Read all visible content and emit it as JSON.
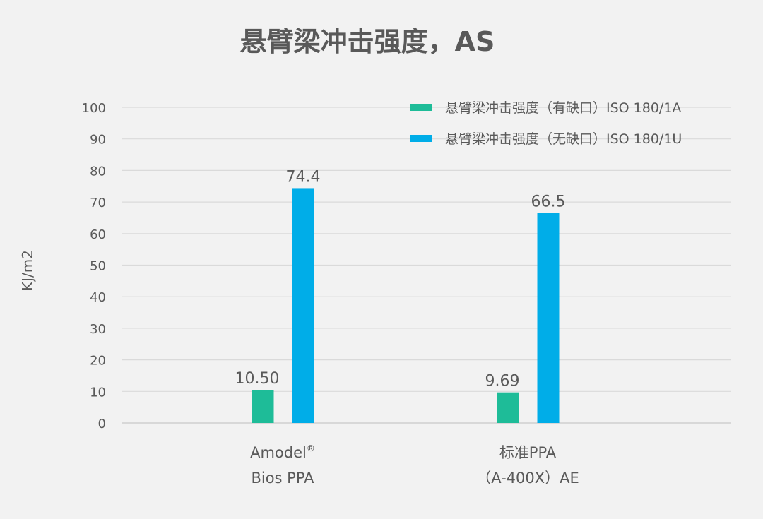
{
  "chart_data": {
    "type": "bar",
    "title": "悬臂梁冲击强度，AS",
    "ylabel": "KJ/m2",
    "xlabel": "",
    "ylim": [
      0,
      100
    ],
    "yticks": [
      0,
      10,
      20,
      30,
      40,
      50,
      60,
      70,
      80,
      90,
      100
    ],
    "grid": true,
    "legend_position": "top-right",
    "categories": [
      {
        "lines": [
          "Amodel",
          "Bios PPA"
        ],
        "superscript": "®"
      },
      {
        "lines": [
          "标准PPA",
          "（A-400X）AE"
        ],
        "superscript": ""
      }
    ],
    "series": [
      {
        "name": "悬臂梁冲击强度（有缺口）ISO 180/1A",
        "color": "#1ebc98",
        "values": [
          10.5,
          9.69
        ],
        "labels": [
          "10.50",
          "9.69"
        ]
      },
      {
        "name": "悬臂梁冲击强度（无缺口）ISO 180/1U",
        "color": "#00ade8",
        "values": [
          74.4,
          66.5
        ],
        "labels": [
          "74.4",
          "66.5"
        ]
      }
    ]
  }
}
